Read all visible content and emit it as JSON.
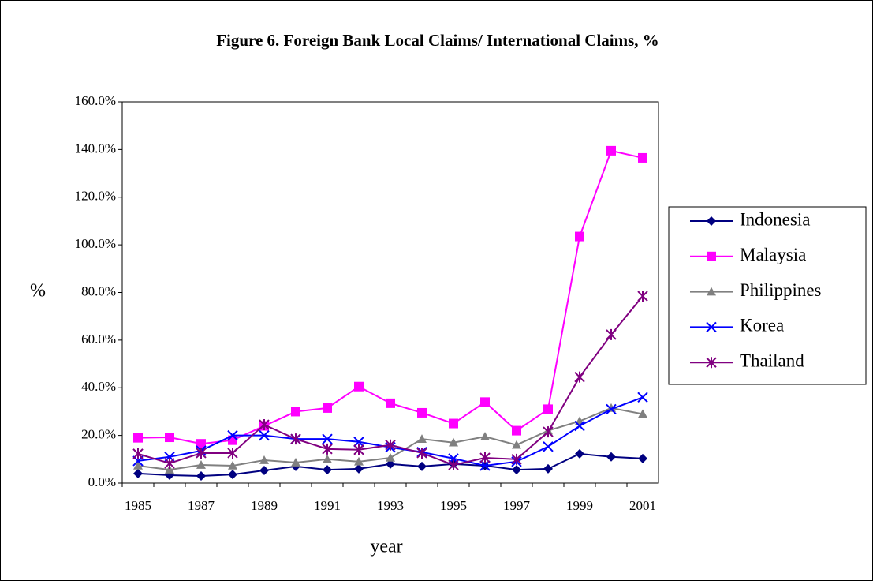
{
  "chart_data": {
    "type": "line",
    "title": "Figure 6. Foreign Bank Local Claims/ International Claims, %",
    "xlabel": "year",
    "ylabel": "%",
    "categories": [
      "1985",
      null,
      "1987",
      null,
      "1989",
      null,
      "1991",
      null,
      "1993",
      null,
      "1995",
      null,
      "1997",
      null,
      "1999",
      null,
      "2001"
    ],
    "ylim": [
      0,
      160
    ],
    "yticks": [
      {
        "value": 0,
        "label": "0.0%"
      },
      {
        "value": 20,
        "label": "20.0%"
      },
      {
        "value": 40,
        "label": "40.0%"
      },
      {
        "value": 60,
        "label": "60.0%"
      },
      {
        "value": 80,
        "label": "80.0%"
      },
      {
        "value": 100,
        "label": "100.0%"
      },
      {
        "value": 120,
        "label": "120.0%"
      },
      {
        "value": 140,
        "label": "140.0%"
      },
      {
        "value": 160,
        "label": "160.0%"
      }
    ],
    "legend": "right",
    "series": [
      {
        "name": "Indonesia",
        "color": "#000080",
        "marker": "diamond",
        "values": [
          4,
          3.3,
          3,
          3.6,
          5.3,
          7,
          5.6,
          6,
          8,
          7,
          8,
          7.3,
          5.6,
          6,
          12.3,
          11,
          10.3
        ]
      },
      {
        "name": "Malaysia",
        "color": "#ff00ff",
        "marker": "square",
        "values": [
          19,
          19.2,
          16.5,
          18,
          24,
          30,
          31.5,
          40.5,
          33.5,
          29.5,
          25,
          34,
          22,
          31,
          103.5,
          139.5,
          136.5
        ]
      },
      {
        "name": "Philippines",
        "color": "#808080",
        "marker": "triangle",
        "values": [
          7.3,
          5.6,
          7.6,
          7.3,
          9.6,
          8.6,
          10,
          9,
          10.6,
          18.5,
          17,
          19.5,
          16,
          22,
          26,
          31.5,
          29
        ]
      },
      {
        "name": "Korea",
        "color": "#0000ff",
        "marker": "x",
        "values": [
          9.3,
          11,
          13.6,
          20,
          20,
          18.5,
          18.5,
          17.3,
          15,
          13,
          10.3,
          7.3,
          9,
          15.3,
          24,
          31,
          36
        ]
      },
      {
        "name": "Thailand",
        "color": "#800080",
        "marker": "star",
        "values": [
          12.3,
          8.3,
          12.6,
          12.6,
          24.5,
          18.5,
          14.3,
          14,
          16,
          12.6,
          7.6,
          10.6,
          10,
          21.5,
          44.5,
          62.3,
          78.5
        ]
      }
    ]
  }
}
